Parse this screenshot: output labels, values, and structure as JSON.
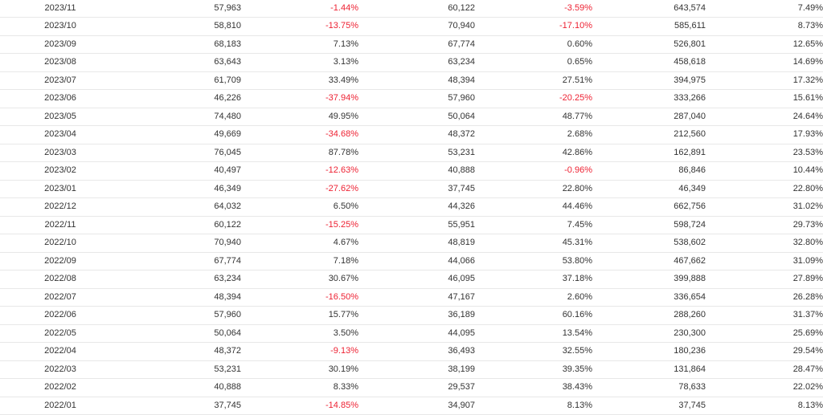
{
  "rows": [
    {
      "period": "2023/11",
      "v1": "57,963",
      "p1": "-1.44%",
      "v2": "60,122",
      "p2": "-3.59%",
      "v3": "643,574",
      "p3": "7.49%"
    },
    {
      "period": "2023/10",
      "v1": "58,810",
      "p1": "-13.75%",
      "v2": "70,940",
      "p2": "-17.10%",
      "v3": "585,611",
      "p3": "8.73%"
    },
    {
      "period": "2023/09",
      "v1": "68,183",
      "p1": "7.13%",
      "v2": "67,774",
      "p2": "0.60%",
      "v3": "526,801",
      "p3": "12.65%"
    },
    {
      "period": "2023/08",
      "v1": "63,643",
      "p1": "3.13%",
      "v2": "63,234",
      "p2": "0.65%",
      "v3": "458,618",
      "p3": "14.69%"
    },
    {
      "period": "2023/07",
      "v1": "61,709",
      "p1": "33.49%",
      "v2": "48,394",
      "p2": "27.51%",
      "v3": "394,975",
      "p3": "17.32%"
    },
    {
      "period": "2023/06",
      "v1": "46,226",
      "p1": "-37.94%",
      "v2": "57,960",
      "p2": "-20.25%",
      "v3": "333,266",
      "p3": "15.61%"
    },
    {
      "period": "2023/05",
      "v1": "74,480",
      "p1": "49.95%",
      "v2": "50,064",
      "p2": "48.77%",
      "v3": "287,040",
      "p3": "24.64%"
    },
    {
      "period": "2023/04",
      "v1": "49,669",
      "p1": "-34.68%",
      "v2": "48,372",
      "p2": "2.68%",
      "v3": "212,560",
      "p3": "17.93%"
    },
    {
      "period": "2023/03",
      "v1": "76,045",
      "p1": "87.78%",
      "v2": "53,231",
      "p2": "42.86%",
      "v3": "162,891",
      "p3": "23.53%"
    },
    {
      "period": "2023/02",
      "v1": "40,497",
      "p1": "-12.63%",
      "v2": "40,888",
      "p2": "-0.96%",
      "v3": "86,846",
      "p3": "10.44%"
    },
    {
      "period": "2023/01",
      "v1": "46,349",
      "p1": "-27.62%",
      "v2": "37,745",
      "p2": "22.80%",
      "v3": "46,349",
      "p3": "22.80%"
    },
    {
      "period": "2022/12",
      "v1": "64,032",
      "p1": "6.50%",
      "v2": "44,326",
      "p2": "44.46%",
      "v3": "662,756",
      "p3": "31.02%"
    },
    {
      "period": "2022/11",
      "v1": "60,122",
      "p1": "-15.25%",
      "v2": "55,951",
      "p2": "7.45%",
      "v3": "598,724",
      "p3": "29.73%"
    },
    {
      "period": "2022/10",
      "v1": "70,940",
      "p1": "4.67%",
      "v2": "48,819",
      "p2": "45.31%",
      "v3": "538,602",
      "p3": "32.80%"
    },
    {
      "period": "2022/09",
      "v1": "67,774",
      "p1": "7.18%",
      "v2": "44,066",
      "p2": "53.80%",
      "v3": "467,662",
      "p3": "31.09%"
    },
    {
      "period": "2022/08",
      "v1": "63,234",
      "p1": "30.67%",
      "v2": "46,095",
      "p2": "37.18%",
      "v3": "399,888",
      "p3": "27.89%"
    },
    {
      "period": "2022/07",
      "v1": "48,394",
      "p1": "-16.50%",
      "v2": "47,167",
      "p2": "2.60%",
      "v3": "336,654",
      "p3": "26.28%"
    },
    {
      "period": "2022/06",
      "v1": "57,960",
      "p1": "15.77%",
      "v2": "36,189",
      "p2": "60.16%",
      "v3": "288,260",
      "p3": "31.37%"
    },
    {
      "period": "2022/05",
      "v1": "50,064",
      "p1": "3.50%",
      "v2": "44,095",
      "p2": "13.54%",
      "v3": "230,300",
      "p3": "25.69%"
    },
    {
      "period": "2022/04",
      "v1": "48,372",
      "p1": "-9.13%",
      "v2": "36,493",
      "p2": "32.55%",
      "v3": "180,236",
      "p3": "29.54%"
    },
    {
      "period": "2022/03",
      "v1": "53,231",
      "p1": "30.19%",
      "v2": "38,199",
      "p2": "39.35%",
      "v3": "131,864",
      "p3": "28.47%"
    },
    {
      "period": "2022/02",
      "v1": "40,888",
      "p1": "8.33%",
      "v2": "29,537",
      "p2": "38.43%",
      "v3": "78,633",
      "p3": "22.02%"
    },
    {
      "period": "2022/01",
      "v1": "37,745",
      "p1": "-14.85%",
      "v2": "34,907",
      "p2": "8.13%",
      "v3": "37,745",
      "p3": "8.13%"
    }
  ],
  "colors": {
    "negative": "#ee2233",
    "text": "#333333",
    "divider": "#e8e8e8"
  }
}
